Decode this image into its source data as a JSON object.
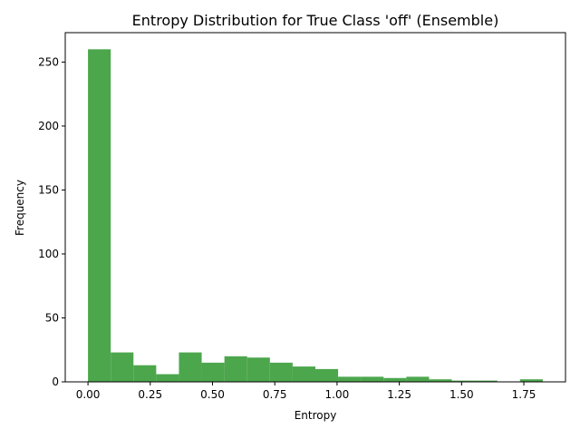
{
  "chart_data": {
    "type": "bar",
    "title": "Entropy Distribution for True Class 'off' (Ensemble)",
    "xlabel": "Entropy",
    "ylabel": "Frequency",
    "bar_color": "#4ca64c",
    "bin_edges": [
      0.0,
      0.0913,
      0.1826,
      0.2739,
      0.3652,
      0.4565,
      0.5478,
      0.6391,
      0.7304,
      0.8217,
      0.913,
      1.0043,
      1.0956,
      1.1869,
      1.2782,
      1.3695,
      1.4608,
      1.5521,
      1.6434,
      1.7347,
      1.826
    ],
    "values": [
      260,
      23,
      13,
      6,
      23,
      15,
      20,
      19,
      15,
      12,
      10,
      4,
      4,
      3,
      4,
      2,
      1,
      1,
      0,
      2
    ],
    "xlim": [
      -0.0913,
      1.9173
    ],
    "ylim": [
      0,
      273
    ],
    "xticks": [
      0.0,
      0.25,
      0.5,
      0.75,
      1.0,
      1.25,
      1.5,
      1.75
    ],
    "xtick_labels": [
      "0.00",
      "0.25",
      "0.50",
      "0.75",
      "1.00",
      "1.25",
      "1.50",
      "1.75"
    ],
    "yticks": [
      0,
      50,
      100,
      150,
      200,
      250
    ],
    "ytick_labels": [
      "0",
      "50",
      "100",
      "150",
      "200",
      "250"
    ],
    "grid": false
  }
}
